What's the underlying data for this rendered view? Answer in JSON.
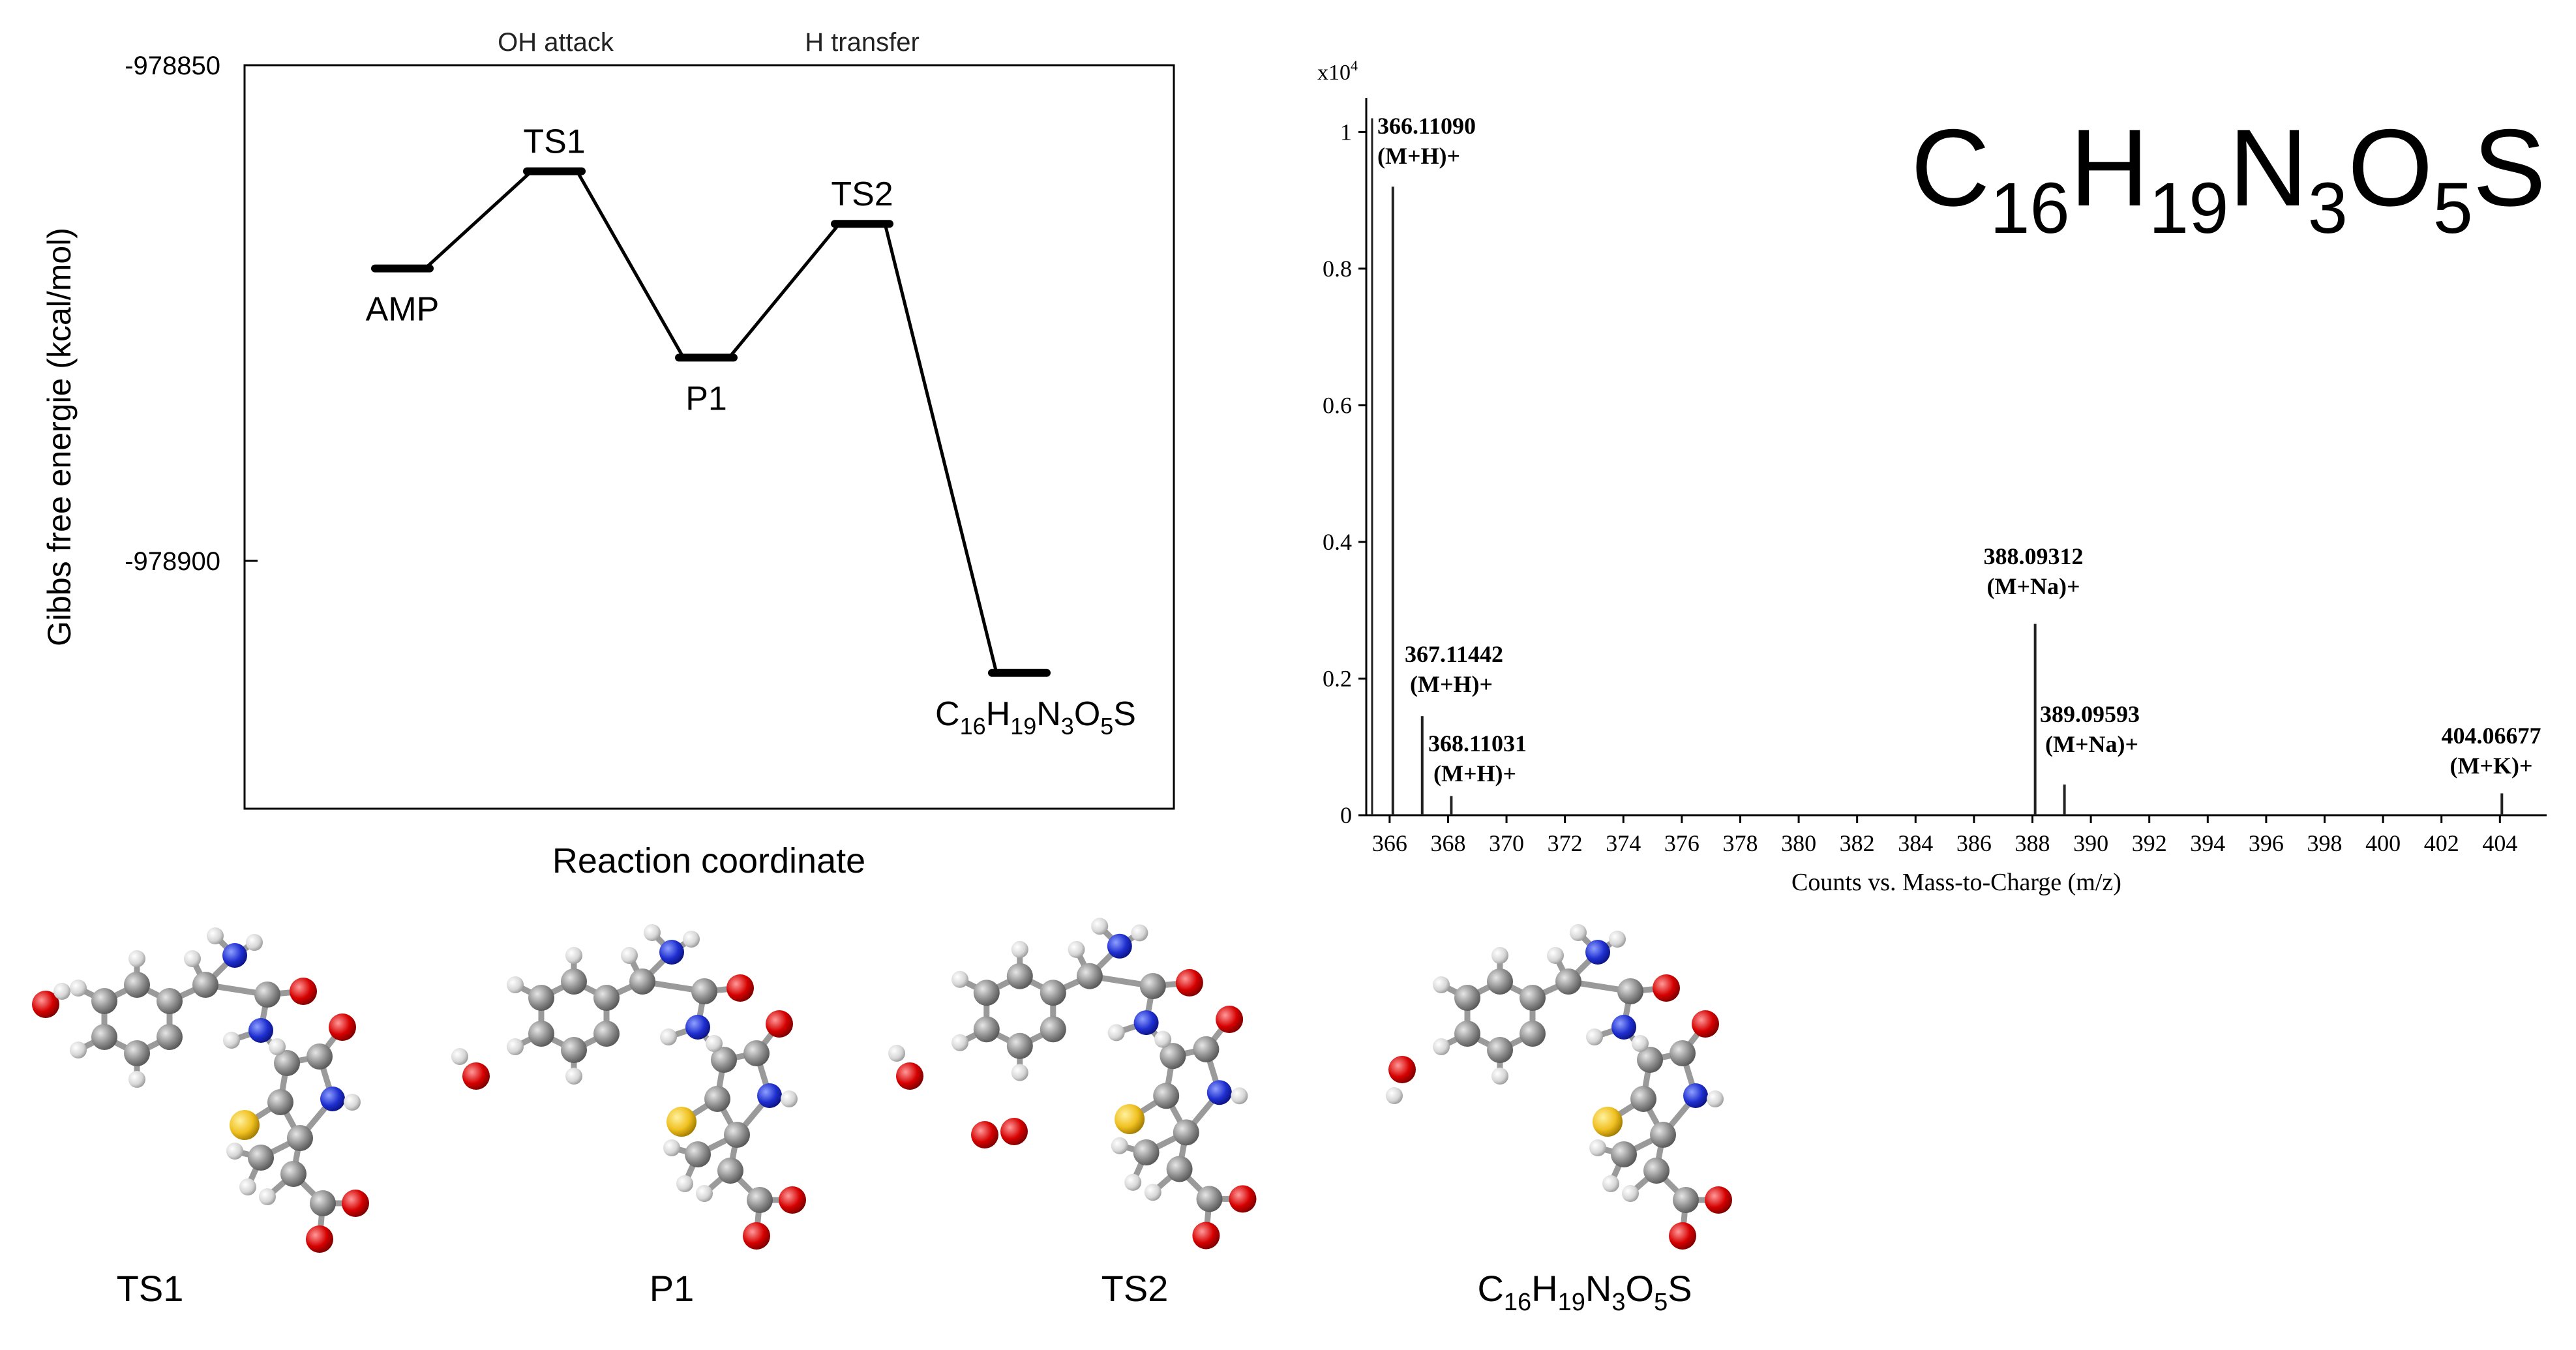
{
  "chart_data": [
    {
      "type": "line",
      "subtype": "reaction-energy-profile",
      "title": "",
      "xlabel": "Reaction coordinate",
      "ylabel": "Gibbs free energie (kcal/mol)",
      "ylim": [
        -978925,
        -978850
      ],
      "yticks": [
        -978850,
        -978900
      ],
      "ytick_labels": [
        "-978850",
        "-978900"
      ],
      "step_annotations": [
        "OH attack",
        "H transfer"
      ],
      "states": [
        {
          "label": "AMP",
          "x": 1,
          "y": -978870.5,
          "label_position": "below"
        },
        {
          "label": "TS1",
          "x": 2,
          "y": -978860.7,
          "label_position": "above"
        },
        {
          "label": "P1",
          "x": 3,
          "y": -978879.5,
          "label_position": "below"
        },
        {
          "label": "TS2",
          "x": 4,
          "y": -978866.0,
          "label_position": "above"
        },
        {
          "label": "C16H19N3O5S",
          "label_main": "C",
          "label_parts": [
            [
              "16",
              "sub"
            ],
            [
              "H",
              ""
            ],
            [
              "19",
              "sub"
            ],
            [
              "N",
              ""
            ],
            [
              "3",
              "sub"
            ],
            [
              "O",
              ""
            ],
            [
              "5",
              "sub"
            ],
            [
              "S",
              ""
            ]
          ],
          "x": 5,
          "y": -978911.3,
          "label_position": "below"
        }
      ],
      "colors": {
        "line": "#000000",
        "axis": "#000000"
      }
    },
    {
      "type": "bar",
      "subtype": "mass-spectrum",
      "title": "",
      "xlabel": "Counts vs. Mass-to-Charge (m/z)",
      "ylabel": "",
      "y_multiplier_label": "x10",
      "y_multiplier_exp": "4",
      "xlim": [
        365.2,
        405.6
      ],
      "ylim": [
        0,
        1.05
      ],
      "xticks": [
        366,
        368,
        370,
        372,
        374,
        376,
        378,
        380,
        382,
        384,
        386,
        388,
        390,
        392,
        394,
        396,
        398,
        400,
        402,
        404
      ],
      "yticks": [
        0,
        0.2,
        0.4,
        0.6,
        0.8,
        1
      ],
      "ytick_labels": [
        "0",
        "0.2",
        "0.4",
        "0.6",
        "0.8",
        "1"
      ],
      "peaks": [
        {
          "mz": 366.1109,
          "intensity": 0.92,
          "mass_label": "366.11090",
          "ion_label": "(M+H)+"
        },
        {
          "mz": 367.11442,
          "intensity": 0.145,
          "mass_label": "367.11442",
          "ion_label": "(M+H)+"
        },
        {
          "mz": 368.11031,
          "intensity": 0.028,
          "mass_label": "368.11031",
          "ion_label": "(M+H)+"
        },
        {
          "mz": 388.09312,
          "intensity": 0.28,
          "mass_label": "388.09312",
          "ion_label": "(M+Na)+"
        },
        {
          "mz": 389.09593,
          "intensity": 0.045,
          "mass_label": "389.09593",
          "ion_label": "(M+Na)+"
        },
        {
          "mz": 404.06677,
          "intensity": 0.032,
          "mass_label": "404.06677",
          "ion_label": "(M+K)+"
        }
      ],
      "left_edge_peak": {
        "mz": 365.4,
        "intensity": 1.02
      },
      "colors": {
        "bar": "#222222",
        "axis": "#000000"
      }
    }
  ],
  "formula_banner": {
    "parts": [
      [
        "C",
        ""
      ],
      [
        "16",
        "sub"
      ],
      [
        "H",
        ""
      ],
      [
        "19",
        "sub"
      ],
      [
        "N",
        ""
      ],
      [
        "3",
        "sub"
      ],
      [
        "O",
        ""
      ],
      [
        "5",
        "sub"
      ],
      [
        "S",
        ""
      ]
    ]
  },
  "molecules": [
    {
      "name": "TS1"
    },
    {
      "name": "P1"
    },
    {
      "name": "TS2"
    },
    {
      "name": "C16H19N3O5S",
      "parts": [
        [
          "C",
          ""
        ],
        [
          "16",
          "sub"
        ],
        [
          "H",
          ""
        ],
        [
          "19",
          "sub"
        ],
        [
          "N",
          ""
        ],
        [
          "3",
          "sub"
        ],
        [
          "O",
          ""
        ],
        [
          "5",
          "sub"
        ],
        [
          "S",
          ""
        ]
      ]
    }
  ],
  "atom_colors": {
    "carbon": "#8c8c8c",
    "hydrogen": "#d8d8d8",
    "nitrogen": "#1f2fd0",
    "oxygen": "#d60000",
    "sulfur": "#f0c020"
  }
}
